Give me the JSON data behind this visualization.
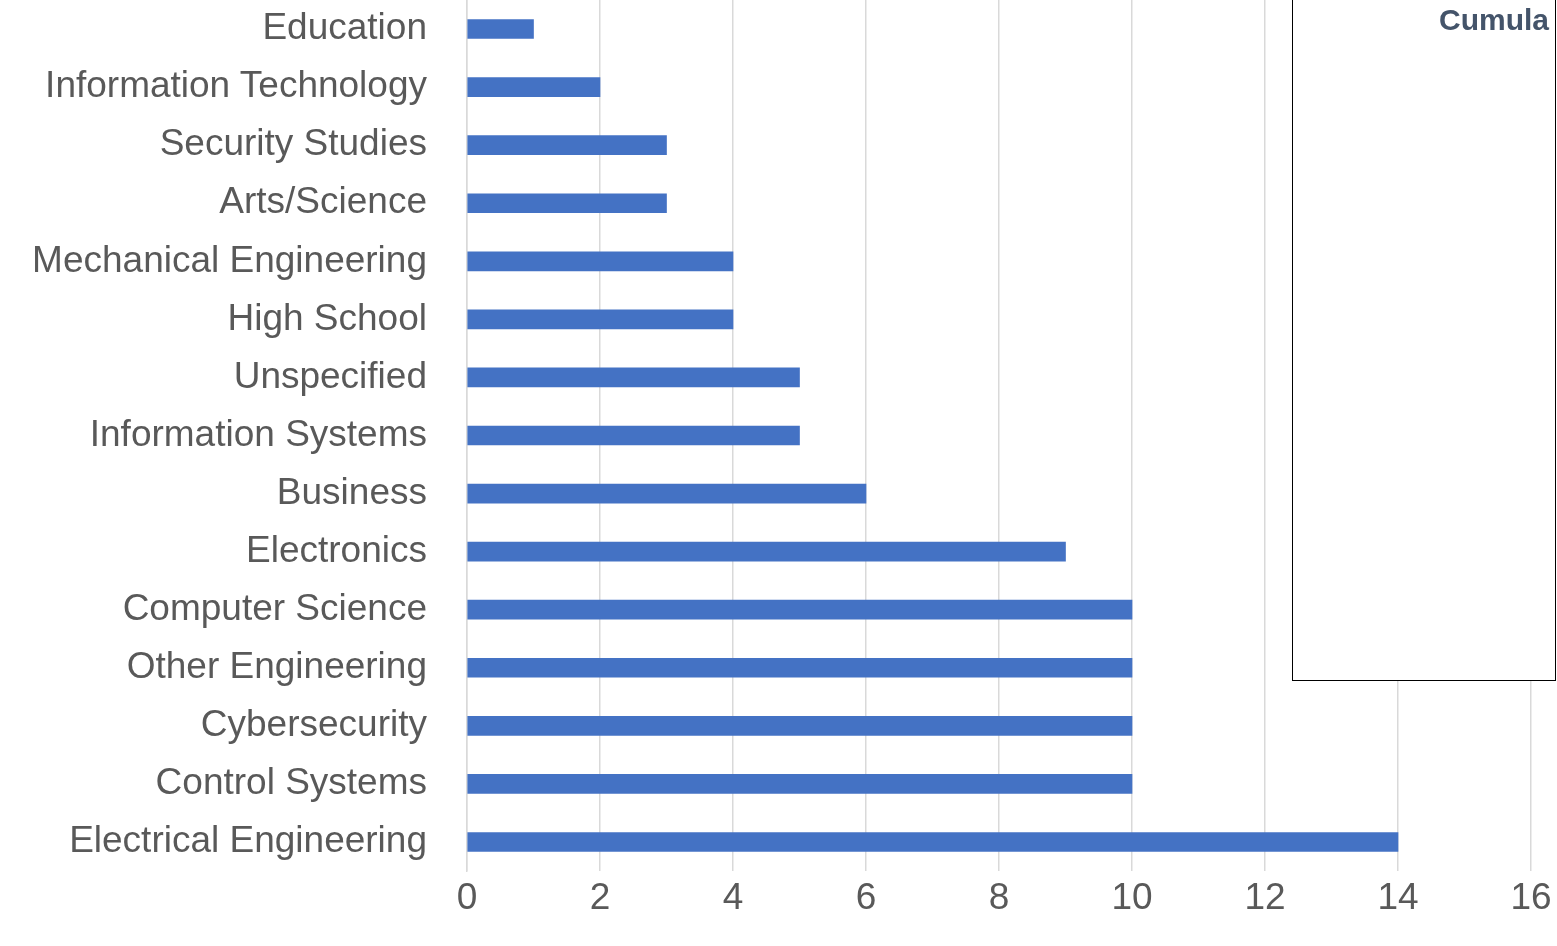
{
  "chart_data": {
    "type": "bar",
    "orientation": "horizontal",
    "categories": [
      "Education",
      "Information Technology",
      "Security Studies",
      "Arts/Science",
      "Mechanical Engineering",
      "High School",
      "Unspecified",
      "Information Systems",
      "Business",
      "Electronics",
      "Computer Science",
      "Other Engineering",
      "Cybersecurity",
      "Control Systems",
      "Electrical Engineering"
    ],
    "values": [
      1,
      2,
      3,
      3,
      4,
      4,
      5,
      5,
      6,
      9,
      10,
      10,
      10,
      10,
      14
    ],
    "color": "#4472c4",
    "xlim": [
      0,
      16
    ],
    "xticks": [
      0,
      2,
      4,
      6,
      8,
      10,
      12,
      14,
      16
    ],
    "grid": "x",
    "legend": false,
    "annotations": [
      "Cumula"
    ]
  }
}
